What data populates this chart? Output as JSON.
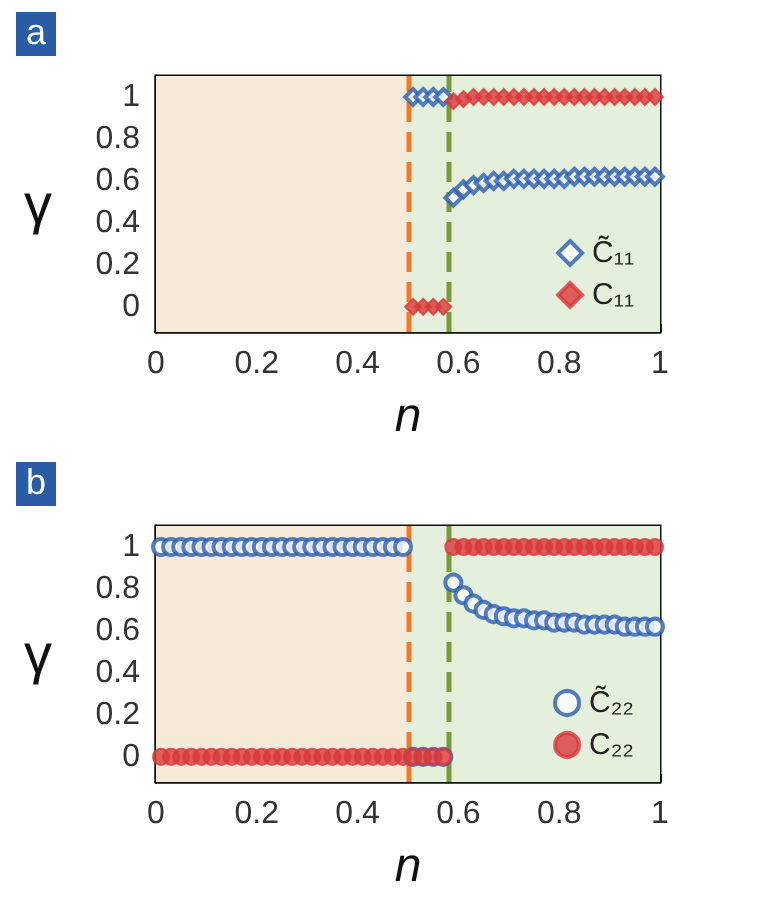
{
  "chart_data": [
    {
      "type": "scatter",
      "title": "a",
      "xlabel": "n",
      "ylabel": "γ",
      "xlim": [
        0,
        1
      ],
      "xticks": [
        0,
        0.2,
        0.4,
        0.6,
        0.8,
        1
      ],
      "ylim": [
        -0.12,
        1.1
      ],
      "yticks": [
        0,
        0.2,
        0.4,
        0.6,
        0.8,
        1
      ],
      "grid": false,
      "legend": "bottom right",
      "marker": "diamond",
      "series": [
        {
          "name": "C̃₁₁",
          "color": "#2a5db0",
          "x": [
            0.51,
            0.53,
            0.55,
            0.57,
            0.59,
            0.61,
            0.63,
            0.65,
            0.67,
            0.69,
            0.71,
            0.73,
            0.75,
            0.77,
            0.79,
            0.81,
            0.83,
            0.85,
            0.87,
            0.89,
            0.91,
            0.93,
            0.95,
            0.97,
            0.99
          ],
          "values": [
            1,
            1,
            1,
            1,
            0.52,
            0.56,
            0.58,
            0.59,
            0.6,
            0.6,
            0.61,
            0.61,
            0.61,
            0.61,
            0.61,
            0.61,
            0.62,
            0.62,
            0.62,
            0.62,
            0.62,
            0.62,
            0.62,
            0.62,
            0.62
          ]
        },
        {
          "name": "C₁₁",
          "color": "#d9383a",
          "x": [
            0.51,
            0.53,
            0.55,
            0.57,
            0.59,
            0.61,
            0.63,
            0.65,
            0.67,
            0.69,
            0.71,
            0.73,
            0.75,
            0.77,
            0.79,
            0.81,
            0.83,
            0.85,
            0.87,
            0.89,
            0.91,
            0.93,
            0.95,
            0.97,
            0.99
          ],
          "values": [
            0,
            0,
            0,
            0,
            0.98,
            0.99,
            1,
            1,
            1,
            1,
            1,
            1,
            1,
            1,
            1,
            1,
            1,
            1,
            1,
            1,
            1,
            1,
            1,
            1,
            1
          ]
        }
      ],
      "bands": [
        {
          "axis": "x",
          "from": 0,
          "to": 0.5,
          "color": "#f8ead9"
        },
        {
          "axis": "x",
          "from": 0.5,
          "to": 1,
          "color": "#e4efdc"
        }
      ],
      "ref_lines": [
        {
          "axis": "x",
          "value": 0.5,
          "color": "#f07a2a",
          "line_style": "dashed"
        },
        {
          "axis": "x",
          "value": 0.58,
          "color": "#7a9a3a",
          "line_style": "dashed"
        }
      ]
    },
    {
      "type": "scatter",
      "title": "b",
      "xlabel": "n",
      "ylabel": "γ",
      "xlim": [
        0,
        1
      ],
      "xticks": [
        0,
        0.2,
        0.4,
        0.6,
        0.8,
        1
      ],
      "ylim": [
        -0.12,
        1.1
      ],
      "yticks": [
        0,
        0.2,
        0.4,
        0.6,
        0.8,
        1
      ],
      "grid": false,
      "legend": "bottom right",
      "marker": "circle",
      "series": [
        {
          "name": "C̃₂₂",
          "color": "#2a5db0",
          "x": [
            0.01,
            0.03,
            0.05,
            0.07,
            0.09,
            0.11,
            0.13,
            0.15,
            0.17,
            0.19,
            0.21,
            0.23,
            0.25,
            0.27,
            0.29,
            0.31,
            0.33,
            0.35,
            0.37,
            0.39,
            0.41,
            0.43,
            0.45,
            0.47,
            0.49,
            0.51,
            0.53,
            0.55,
            0.57,
            0.59,
            0.61,
            0.63,
            0.65,
            0.67,
            0.69,
            0.71,
            0.73,
            0.75,
            0.77,
            0.79,
            0.81,
            0.83,
            0.85,
            0.87,
            0.89,
            0.91,
            0.93,
            0.95,
            0.97,
            0.99
          ],
          "values": [
            1,
            1,
            1,
            1,
            1,
            1,
            1,
            1,
            1,
            1,
            1,
            1,
            1,
            1,
            1,
            1,
            1,
            1,
            1,
            1,
            1,
            1,
            1,
            1,
            1,
            0,
            0,
            0,
            0,
            0.83,
            0.77,
            0.73,
            0.7,
            0.68,
            0.67,
            0.66,
            0.66,
            0.65,
            0.65,
            0.64,
            0.64,
            0.64,
            0.63,
            0.63,
            0.63,
            0.63,
            0.62,
            0.62,
            0.62,
            0.62
          ]
        },
        {
          "name": "C₂₂",
          "color": "#d9383a",
          "x": [
            0.01,
            0.03,
            0.05,
            0.07,
            0.09,
            0.11,
            0.13,
            0.15,
            0.17,
            0.19,
            0.21,
            0.23,
            0.25,
            0.27,
            0.29,
            0.31,
            0.33,
            0.35,
            0.37,
            0.39,
            0.41,
            0.43,
            0.45,
            0.47,
            0.49,
            0.51,
            0.53,
            0.55,
            0.57,
            0.59,
            0.61,
            0.63,
            0.65,
            0.67,
            0.69,
            0.71,
            0.73,
            0.75,
            0.77,
            0.79,
            0.81,
            0.83,
            0.85,
            0.87,
            0.89,
            0.91,
            0.93,
            0.95,
            0.97,
            0.99
          ],
          "values": [
            0,
            0,
            0,
            0,
            0,
            0,
            0,
            0,
            0,
            0,
            0,
            0,
            0,
            0,
            0,
            0,
            0,
            0,
            0,
            0,
            0,
            0,
            0,
            0,
            0,
            0,
            0,
            0,
            0,
            1,
            1,
            1,
            1,
            1,
            1,
            1,
            1,
            1,
            1,
            1,
            1,
            1,
            1,
            1,
            1,
            1,
            1,
            1,
            1,
            1
          ]
        }
      ],
      "bands": [
        {
          "axis": "x",
          "from": 0,
          "to": 0.5,
          "color": "#f8ead9"
        },
        {
          "axis": "x",
          "from": 0.5,
          "to": 1,
          "color": "#e4efdc"
        }
      ],
      "ref_lines": [
        {
          "axis": "x",
          "value": 0.5,
          "color": "#f07a2a",
          "line_style": "dashed"
        },
        {
          "axis": "x",
          "value": 0.58,
          "color": "#7a9a3a",
          "line_style": "dashed"
        }
      ]
    }
  ]
}
